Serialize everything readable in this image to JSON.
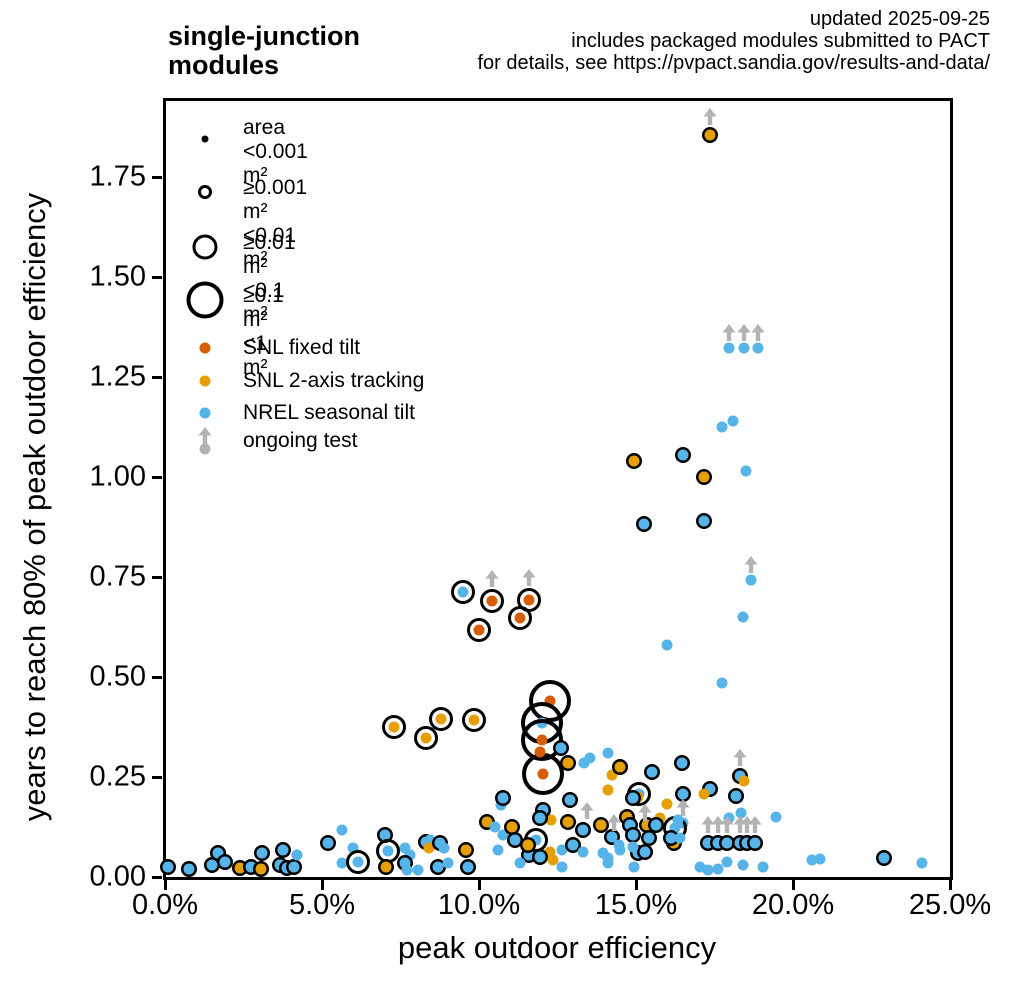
{
  "header": {
    "title": "single-junction\nmodules",
    "note_lines": [
      "updated 2025-09-25",
      "includes packaged modules submitted to PACT",
      "for details, see https://pvpact.sandia.gov/results-and-data/"
    ]
  },
  "colors": {
    "snl_fixed_tilt": "#d55e00",
    "snl_2axis_tracking": "#e69f00",
    "nrel_seasonal_tilt": "#56b4e9",
    "ongoing_test_gray": "#b3b3b3",
    "frame_black": "#000000"
  },
  "legend": {
    "size_items": [
      {
        "lines": [
          "area",
          "<0.001 m²"
        ],
        "marker": "dot"
      },
      {
        "lines": [
          "≥0.001 m²",
          "<0.01 m²"
        ],
        "marker": "ring-small"
      },
      {
        "lines": [
          "≥0.01 m²",
          "<0.1 m²"
        ],
        "marker": "ring-medium"
      },
      {
        "lines": [
          "≥0.1 m²",
          "<1 m²"
        ],
        "marker": "ring-large"
      }
    ],
    "color_items": [
      {
        "label": "SNL fixed tilt",
        "key": "f"
      },
      {
        "label": "SNL 2-axis tracking",
        "key": "t"
      },
      {
        "label": "NREL seasonal tilt",
        "key": "n"
      },
      {
        "label": "ongoing test",
        "key": "g"
      }
    ]
  },
  "chart_data": {
    "type": "scatter",
    "title": "single-junction modules",
    "xlabel": "peak outdoor efficiency",
    "ylabel": "years to reach 80% of peak outdoor efficiency",
    "xlim": [
      0,
      25
    ],
    "ylim": [
      0,
      1.94
    ],
    "x_unit": "percent",
    "y_unit": "years",
    "grid": false,
    "legend_position": "upper-left-inside",
    "x_ticks": [
      0,
      5,
      10,
      15,
      20,
      25
    ],
    "x_tick_labels": [
      "0.0%",
      "5.0%",
      "10.0%",
      "15.0%",
      "20.0%",
      "25.0%"
    ],
    "y_ticks": [
      0,
      0.25,
      0.5,
      0.75,
      1.0,
      1.25,
      1.5,
      1.75
    ],
    "y_tick_labels": [
      "0.00",
      "0.25",
      "0.50",
      "0.75",
      "1.00",
      "1.25",
      "1.50",
      "1.75"
    ],
    "series": [
      {
        "key": "f",
        "name": "SNL fixed tilt",
        "color": "#d55e00"
      },
      {
        "key": "t",
        "name": "SNL 2-axis tracking",
        "color": "#e69f00"
      },
      {
        "key": "n",
        "name": "NREL seasonal tilt",
        "color": "#56b4e9"
      },
      {
        "key": "g",
        "name": "ongoing test",
        "color": "#b3b3b3"
      }
    ],
    "size_classes": [
      "<0.001 m²",
      "≥0.001–<0.01 m²",
      "≥0.01–<0.1 m²",
      "≥0.1–<1 m²"
    ],
    "point_format": [
      "x_percent",
      "y_years",
      "series_key",
      "size_class",
      "ongoing_arrow"
    ],
    "points": [
      [
        17.35,
        1.855,
        "t",
        1,
        1
      ],
      [
        17.95,
        1.3225,
        "n",
        0,
        1
      ],
      [
        18.45,
        1.3225,
        "n",
        0,
        1
      ],
      [
        18.9,
        1.3225,
        "n",
        0,
        1
      ],
      [
        17.75,
        1.125,
        "n",
        0,
        0
      ],
      [
        18.1,
        1.14,
        "n",
        0,
        0
      ],
      [
        14.95,
        1.04,
        "t",
        1,
        0
      ],
      [
        16.5,
        1.055,
        "n",
        1,
        0
      ],
      [
        17.15,
        1.0,
        "t",
        1,
        0
      ],
      [
        18.5,
        1.015,
        "n",
        0,
        0
      ],
      [
        15.25,
        0.8825,
        "n",
        1,
        0
      ],
      [
        17.15,
        0.89,
        "n",
        1,
        0
      ],
      [
        18.65,
        0.7425,
        "n",
        0,
        1
      ],
      [
        18.4,
        0.65,
        "n",
        0,
        0
      ],
      [
        17.75,
        0.485,
        "n",
        0,
        0
      ],
      [
        16.0,
        0.58,
        "n",
        0,
        0
      ],
      [
        9.5,
        0.7125,
        "n",
        2,
        0
      ],
      [
        10.4,
        0.69,
        "f",
        2,
        1
      ],
      [
        11.6,
        0.6925,
        "f",
        2,
        1
      ],
      [
        11.3,
        0.6475,
        "f",
        2,
        0
      ],
      [
        10.0,
        0.6175,
        "f",
        2,
        0
      ],
      [
        7.3,
        0.375,
        "t",
        2,
        0
      ],
      [
        8.8,
        0.395,
        "t",
        2,
        0
      ],
      [
        8.3,
        0.3475,
        "t",
        2,
        0
      ],
      [
        9.85,
        0.3925,
        "t",
        2,
        0
      ],
      [
        12.25,
        0.44,
        "f",
        3,
        0
      ],
      [
        12.0,
        0.385,
        "n",
        3,
        0
      ],
      [
        12.0,
        0.3425,
        "f",
        3,
        0
      ],
      [
        12.05,
        0.2575,
        "f",
        3,
        0
      ],
      [
        11.95,
        0.3125,
        "f",
        0,
        0
      ],
      [
        12.6,
        0.3225,
        "n",
        1,
        0
      ],
      [
        12.85,
        0.285,
        "t",
        1,
        0
      ],
      [
        13.35,
        0.285,
        "n",
        0,
        0
      ],
      [
        13.55,
        0.2975,
        "n",
        0,
        0
      ],
      [
        14.1,
        0.31,
        "n",
        0,
        0
      ],
      [
        14.25,
        0.255,
        "t",
        0,
        0
      ],
      [
        14.1,
        0.2175,
        "t",
        0,
        0
      ],
      [
        14.5,
        0.275,
        "t",
        1,
        0
      ],
      [
        15.5,
        0.2625,
        "n",
        1,
        0
      ],
      [
        16.45,
        0.285,
        "n",
        1,
        0
      ],
      [
        17.35,
        0.22,
        "n",
        1,
        0
      ],
      [
        17.15,
        0.2075,
        "t",
        0,
        0
      ],
      [
        16.5,
        0.2075,
        "n",
        1,
        0
      ],
      [
        15.1,
        0.2075,
        "n",
        2,
        0
      ],
      [
        15.05,
        0.2,
        "t",
        0,
        0
      ],
      [
        18.3,
        0.2525,
        "n",
        1,
        1
      ],
      [
        18.45,
        0.24,
        "t",
        0,
        0
      ],
      [
        18.2,
        0.2025,
        "n",
        1,
        0
      ],
      [
        16.0,
        0.1825,
        "t",
        0,
        0
      ],
      [
        16.5,
        0.135,
        "n",
        0,
        1
      ],
      [
        17.95,
        0.1475,
        "n",
        0,
        0
      ],
      [
        18.35,
        0.16,
        "n",
        0,
        0
      ],
      [
        19.45,
        0.15,
        "n",
        0,
        0
      ],
      [
        12.9,
        0.1925,
        "n",
        1,
        0
      ],
      [
        14.9,
        0.1975,
        "n",
        1,
        0
      ],
      [
        12.3,
        0.1425,
        "t",
        0,
        0
      ],
      [
        12.85,
        0.1375,
        "t",
        1,
        0
      ],
      [
        13.3,
        0.1175,
        "n",
        1,
        0
      ],
      [
        13.9,
        0.13,
        "t",
        1,
        0
      ],
      [
        14.25,
        0.1,
        "n",
        1,
        0
      ],
      [
        14.7,
        0.15,
        "t",
        1,
        0
      ],
      [
        15.35,
        0.13,
        "t",
        1,
        0
      ],
      [
        15.75,
        0.1475,
        "t",
        0,
        0
      ],
      [
        16.25,
        0.1225,
        "n",
        2,
        0
      ],
      [
        16.2,
        0.085,
        "t",
        1,
        0
      ],
      [
        14.8,
        0.13,
        "n",
        1,
        0
      ],
      [
        15.65,
        0.13,
        "n",
        1,
        0
      ],
      [
        16.1,
        0.0975,
        "n",
        1,
        0
      ],
      [
        14.9,
        0.105,
        "n",
        1,
        0
      ],
      [
        15.05,
        0.06,
        "n",
        1,
        0
      ],
      [
        16.35,
        0.1425,
        "n",
        0,
        0
      ],
      [
        16.4,
        0.0975,
        "n",
        0,
        0
      ],
      [
        13.45,
        0.155,
        "g",
        0,
        1
      ],
      [
        14.3,
        0.125,
        "g",
        0,
        1
      ],
      [
        15.3,
        0.15,
        "g",
        0,
        1
      ],
      [
        17.3,
        0.085,
        "n",
        1,
        1
      ],
      [
        17.6,
        0.085,
        "n",
        1,
        1
      ],
      [
        17.9,
        0.085,
        "n",
        1,
        1
      ],
      [
        18.3,
        0.085,
        "n",
        1,
        1
      ],
      [
        18.55,
        0.085,
        "n",
        1,
        1
      ],
      [
        18.8,
        0.085,
        "n",
        1,
        1
      ],
      [
        17.05,
        0.025,
        "n",
        0,
        0
      ],
      [
        17.3,
        0.0175,
        "n",
        0,
        0
      ],
      [
        17.6,
        0.02,
        "n",
        0,
        0
      ],
      [
        17.9,
        0.0375,
        "n",
        0,
        0
      ],
      [
        18.4,
        0.03,
        "n",
        0,
        0
      ],
      [
        19.05,
        0.025,
        "n",
        0,
        0
      ],
      [
        20.6,
        0.0425,
        "n",
        0,
        0
      ],
      [
        20.85,
        0.045,
        "n",
        0,
        0
      ],
      [
        22.9,
        0.0475,
        "n",
        1,
        0
      ],
      [
        24.1,
        0.035,
        "n",
        0,
        0
      ],
      [
        14.95,
        0.025,
        "n",
        0,
        0
      ],
      [
        15.3,
        0.0625,
        "n",
        1,
        0
      ],
      [
        14.5,
        0.0675,
        "n",
        0,
        0
      ],
      [
        14.1,
        0.035,
        "n",
        0,
        0
      ],
      [
        14.1,
        0.0475,
        "n",
        0,
        0
      ],
      [
        12.65,
        0.0675,
        "n",
        0,
        0
      ],
      [
        12.25,
        0.0625,
        "t",
        0,
        0
      ],
      [
        11.6,
        0.055,
        "n",
        1,
        0
      ],
      [
        11.8,
        0.0925,
        "n",
        2,
        0
      ],
      [
        13.0,
        0.08,
        "n",
        1,
        0
      ],
      [
        13.3,
        0.0625,
        "n",
        0,
        0
      ],
      [
        13.95,
        0.06,
        "n",
        0,
        0
      ],
      [
        14.45,
        0.08,
        "n",
        0,
        0
      ],
      [
        14.9,
        0.075,
        "n",
        0,
        0
      ],
      [
        15.4,
        0.0975,
        "n",
        1,
        0
      ],
      [
        10.7,
        0.18,
        "n",
        0,
        0
      ],
      [
        10.75,
        0.1975,
        "n",
        1,
        0
      ],
      [
        10.25,
        0.1375,
        "t",
        1,
        0
      ],
      [
        10.5,
        0.125,
        "n",
        0,
        0
      ],
      [
        10.75,
        0.105,
        "n",
        0,
        0
      ],
      [
        10.6,
        0.0675,
        "n",
        0,
        0
      ],
      [
        11.05,
        0.125,
        "t",
        1,
        0
      ],
      [
        11.15,
        0.0925,
        "n",
        1,
        0
      ],
      [
        11.55,
        0.08,
        "t",
        1,
        0
      ],
      [
        12.05,
        0.1675,
        "n",
        1,
        0
      ],
      [
        11.95,
        0.1475,
        "n",
        1,
        0
      ],
      [
        11.3,
        0.035,
        "n",
        0,
        0
      ],
      [
        11.95,
        0.05,
        "n",
        1,
        0
      ],
      [
        12.35,
        0.0425,
        "t",
        0,
        0
      ],
      [
        12.65,
        0.025,
        "n",
        0,
        0
      ],
      [
        7.65,
        0.0725,
        "n",
        0,
        0
      ],
      [
        7.8,
        0.055,
        "n",
        0,
        0
      ],
      [
        7.65,
        0.035,
        "n",
        1,
        0
      ],
      [
        8.05,
        0.0175,
        "n",
        0,
        0
      ],
      [
        8.3,
        0.0875,
        "n",
        1,
        0
      ],
      [
        8.45,
        0.0925,
        "n",
        0,
        0
      ],
      [
        8.4,
        0.0725,
        "t",
        0,
        0
      ],
      [
        8.75,
        0.085,
        "n",
        1,
        0
      ],
      [
        8.9,
        0.0725,
        "n",
        0,
        0
      ],
      [
        8.7,
        0.025,
        "n",
        1,
        0
      ],
      [
        9.0,
        0.035,
        "n",
        0,
        0
      ],
      [
        9.6,
        0.0675,
        "t",
        1,
        0
      ],
      [
        9.65,
        0.025,
        "n",
        1,
        0
      ],
      [
        0.1,
        0.025,
        "n",
        1,
        0
      ],
      [
        0.75,
        0.02,
        "n",
        1,
        0
      ],
      [
        1.5,
        0.03,
        "n",
        1,
        0
      ],
      [
        1.7,
        0.06,
        "n",
        1,
        0
      ],
      [
        1.9,
        0.0375,
        "n",
        1,
        0
      ],
      [
        2.4,
        0.0225,
        "t",
        1,
        0
      ],
      [
        2.75,
        0.025,
        "n",
        1,
        0
      ],
      [
        3.1,
        0.06,
        "n",
        1,
        0
      ],
      [
        3.05,
        0.02,
        "t",
        1,
        0
      ],
      [
        3.65,
        0.03,
        "n",
        1,
        0
      ],
      [
        3.75,
        0.0675,
        "n",
        1,
        0
      ],
      [
        3.9,
        0.0225,
        "n",
        1,
        0
      ],
      [
        4.1,
        0.025,
        "n",
        1,
        0
      ],
      [
        4.2,
        0.055,
        "n",
        0,
        0
      ],
      [
        5.2,
        0.085,
        "n",
        1,
        0
      ],
      [
        5.65,
        0.1175,
        "n",
        0,
        0
      ],
      [
        5.65,
        0.035,
        "n",
        0,
        0
      ],
      [
        6.0,
        0.0725,
        "n",
        0,
        0
      ],
      [
        6.15,
        0.0375,
        "n",
        2,
        0
      ],
      [
        7.0,
        0.105,
        "n",
        1,
        0
      ],
      [
        7.1,
        0.065,
        "n",
        2,
        0
      ],
      [
        7.05,
        0.025,
        "t",
        1,
        0
      ],
      [
        7.7,
        0.0175,
        "n",
        0,
        0
      ]
    ]
  }
}
